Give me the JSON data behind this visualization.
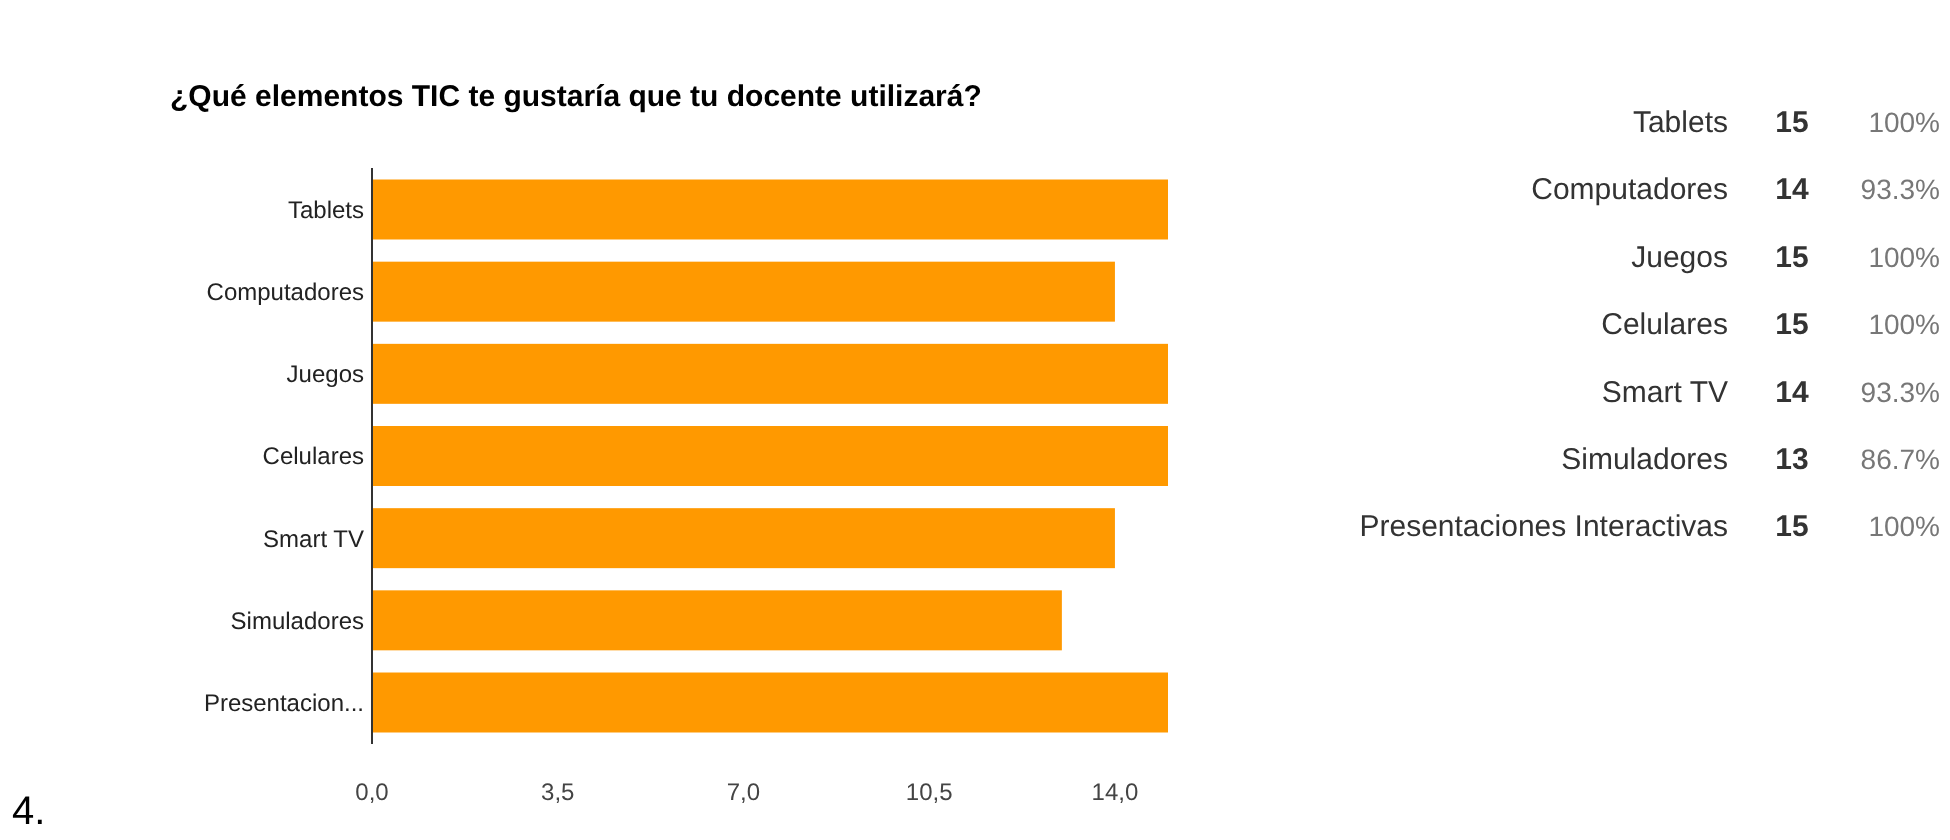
{
  "chart_data": [
    {
      "type": "bar",
      "orientation": "horizontal",
      "title": "¿Qué elementos TIC te gustaría que tu docente utilizará?",
      "categories": [
        "Tablets",
        "Computadores",
        "Juegos",
        "Celulares",
        "Smart TV",
        "Simuladores",
        "Presentacion..."
      ],
      "values": [
        15,
        14,
        15,
        15,
        14,
        13,
        15
      ],
      "color": "#ff9900",
      "xlim": [
        0,
        15
      ],
      "xticks": [
        {
          "value": 0,
          "label": "0,0"
        },
        {
          "value": 3.5,
          "label": "3,5"
        },
        {
          "value": 7,
          "label": "7,0"
        },
        {
          "value": 10.5,
          "label": "10,5"
        },
        {
          "value": 14,
          "label": "14,0"
        }
      ],
      "annotations": [
        "4."
      ]
    },
    {
      "type": "other",
      "categories": [
        "Tablets",
        "Computadores",
        "Juegos",
        "Celulares",
        "Smart TV",
        "Simuladores",
        "Presentaciones Interactivas"
      ],
      "cell_labels": [
        [
          "15",
          "100%"
        ],
        [
          "14",
          "93.3%"
        ],
        [
          "15",
          "100%"
        ],
        [
          "15",
          "100%"
        ],
        [
          "14",
          "93.3%"
        ],
        [
          "13",
          "86.7%"
        ],
        [
          "15",
          "100%"
        ]
      ]
    }
  ]
}
